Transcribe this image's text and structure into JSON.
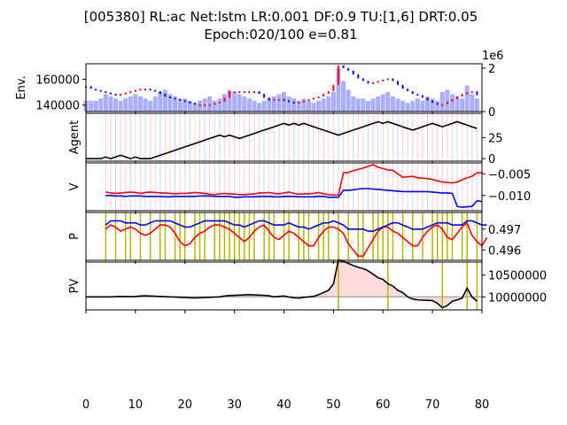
{
  "chart_data": {
    "title_line1": "[005380] RL:ac Net:lstm LR:0.001 DF:0.9 TU:[1,6] DRT:0.05",
    "title_line2": "Epoch:020/100 e=0.81",
    "x_ticks": [
      "0",
      "10",
      "20",
      "30",
      "40",
      "50",
      "60",
      "70",
      "80"
    ],
    "xlim": [
      0,
      80
    ],
    "panels": [
      {
        "type": "candlestick+bar",
        "ylabel": "Env.",
        "ylim": [
          135000,
          172000
        ],
        "y_ticks": [
          "140000",
          "160000"
        ],
        "y_tick_values": [
          140000,
          160000
        ],
        "right_axis": {
          "ylim": [
            0,
            2200000
          ],
          "ticks": [
            "0",
            "2"
          ],
          "tick_values": [
            0,
            2000000
          ],
          "offset_label": "1e6"
        },
        "close": [
          154000,
          152000,
          151000,
          150000,
          149000,
          148000,
          147000,
          148000,
          149000,
          150000,
          151000,
          152000,
          152000,
          151000,
          150000,
          148000,
          146000,
          145000,
          144000,
          143000,
          142000,
          141000,
          140000,
          140000,
          140000,
          140000,
          141000,
          142000,
          145000,
          150000,
          150000,
          150000,
          150000,
          150000,
          150000,
          148000,
          145000,
          143000,
          144000,
          144000,
          143000,
          142000,
          141000,
          142000,
          143000,
          144000,
          145000,
          146000,
          148000,
          150000,
          155000,
          170000,
          168000,
          166000,
          163000,
          160000,
          158000,
          156000,
          157000,
          158000,
          159000,
          160000,
          158000,
          155000,
          152000,
          150000,
          148000,
          147000,
          145000,
          143000,
          141000,
          140000,
          140000,
          142000,
          144000,
          146000,
          148000,
          149000,
          150000,
          147000
        ],
        "volume": [
          500000,
          500000,
          500000,
          600000,
          800000,
          700000,
          600000,
          500000,
          600000,
          700000,
          800000,
          700000,
          600000,
          500000,
          700000,
          900000,
          1000000,
          800000,
          700000,
          600000,
          600000,
          500000,
          400000,
          500000,
          600000,
          700000,
          500000,
          600000,
          800000,
          1000000,
          900000,
          800000,
          700000,
          600000,
          500000,
          400000,
          500000,
          600000,
          700000,
          800000,
          900000,
          700000,
          600000,
          500000,
          600000,
          500000,
          400000,
          500000,
          600000,
          700000,
          900000,
          2000000,
          1400000,
          1000000,
          700000,
          600000,
          600000,
          500000,
          600000,
          700000,
          800000,
          900000,
          700000,
          600000,
          500000,
          400000,
          500000,
          600000,
          500000,
          700000,
          600000,
          500000,
          900000,
          1000000,
          800000,
          700000,
          600000,
          1200000,
          800000,
          600000
        ]
      },
      {
        "type": "line",
        "ylabel": "Agent",
        "ylim": [
          -3,
          54
        ],
        "y_ticks": [
          "0",
          "25"
        ],
        "y_tick_values": [
          0,
          25
        ],
        "values": [
          0,
          0,
          0,
          0,
          2,
          0,
          2,
          4,
          2,
          0,
          2,
          0,
          0,
          0,
          2,
          4,
          6,
          8,
          10,
          12,
          14,
          16,
          18,
          20,
          22,
          24,
          26,
          28,
          26,
          28,
          26,
          24,
          26,
          28,
          30,
          32,
          34,
          36,
          38,
          40,
          42,
          40,
          42,
          40,
          42,
          40,
          38,
          36,
          34,
          32,
          30,
          28,
          30,
          32,
          34,
          36,
          38,
          40,
          42,
          44,
          42,
          44,
          42,
          40,
          38,
          36,
          34,
          36,
          38,
          40,
          42,
          40,
          38,
          40,
          42,
          44,
          42,
          40,
          38,
          36
        ]
      },
      {
        "type": "line",
        "ylabel": "V",
        "ylim": [
          -0.0135,
          -0.0025
        ],
        "y_ticks": [
          "−0.005",
          "−0.010"
        ],
        "y_tick_values": [
          -0.005,
          -0.01
        ],
        "series": [
          {
            "color": "#ff0000",
            "values": [
              -0.0092,
              -0.0094,
              -0.0095,
              -0.0094,
              -0.0093,
              -0.0092,
              -0.0093,
              -0.0095,
              -0.0093,
              -0.0092,
              -0.0093,
              -0.0094,
              -0.0094,
              -0.0095,
              -0.0096,
              -0.0095,
              -0.0095,
              -0.0094,
              -0.0093,
              -0.0094,
              -0.0095,
              -0.0097,
              -0.0098,
              -0.0096,
              -0.0095,
              -0.0096,
              -0.0097,
              -0.0098,
              -0.0098,
              -0.0097,
              -0.0096,
              -0.0094,
              -0.0094,
              -0.0093,
              -0.0095,
              -0.0096,
              -0.0094,
              -0.0092,
              -0.0095,
              -0.0097,
              -0.0096,
              -0.0096,
              -0.0095,
              -0.0093,
              -0.0096,
              -0.0098,
              -0.0099,
              -0.0099,
              -0.0048,
              -0.0047,
              -0.0043,
              -0.004,
              -0.0037,
              -0.0033,
              -0.0029,
              -0.0035,
              -0.0038,
              -0.0041,
              -0.0042,
              -0.005,
              -0.0058,
              -0.0057,
              -0.0056,
              -0.0059,
              -0.006,
              -0.0061,
              -0.0063,
              -0.0066,
              -0.0069,
              -0.007,
              -0.0071,
              -0.0069,
              -0.0064,
              -0.0059,
              -0.0056,
              -0.0048,
              -0.0047
            ]
          },
          {
            "color": "#0000ff",
            "values": [
              -0.01,
              -0.01,
              -0.0101,
              -0.0101,
              -0.0102,
              -0.0101,
              -0.0101,
              -0.0101,
              -0.0102,
              -0.0102,
              -0.0102,
              -0.0102,
              -0.0103,
              -0.0103,
              -0.0102,
              -0.0102,
              -0.0102,
              -0.0102,
              -0.0102,
              -0.0101,
              -0.0101,
              -0.0101,
              -0.0102,
              -0.0102,
              -0.0102,
              -0.0102,
              -0.0104,
              -0.0104,
              -0.0103,
              -0.0103,
              -0.0103,
              -0.0102,
              -0.0102,
              -0.0102,
              -0.0103,
              -0.0103,
              -0.0102,
              -0.0102,
              -0.0102,
              -0.0103,
              -0.0103,
              -0.0103,
              -0.0103,
              -0.0102,
              -0.0102,
              -0.0104,
              -0.0104,
              -0.0104,
              -0.0088,
              -0.0088,
              -0.0087,
              -0.0085,
              -0.0084,
              -0.0084,
              -0.0085,
              -0.0086,
              -0.0087,
              -0.0088,
              -0.0089,
              -0.009,
              -0.0091,
              -0.0091,
              -0.0091,
              -0.0091,
              -0.0091,
              -0.0091,
              -0.0092,
              -0.0093,
              -0.0094,
              -0.0094,
              -0.0095,
              -0.0125,
              -0.0127,
              -0.0126,
              -0.0125,
              -0.0112,
              -0.0114
            ]
          }
        ],
        "x_start": 4
      },
      {
        "type": "line",
        "ylabel": "P",
        "ylim": [
          0.4955,
          0.4978
        ],
        "y_ticks": [
          "0.497",
          "0.496"
        ],
        "y_tick_values": [
          0.497,
          0.496
        ],
        "series": [
          {
            "color": "#ff0000",
            "values": [
              0.497,
              0.4972,
              0.4971,
              0.4969,
              0.497,
              0.4971,
              0.497,
              0.4968,
              0.4967,
              0.4968,
              0.497,
              0.4972,
              0.4972,
              0.4971,
              0.4968,
              0.4964,
              0.4962,
              0.4963,
              0.4966,
              0.4968,
              0.4969,
              0.4971,
              0.4972,
              0.4972,
              0.4971,
              0.497,
              0.4968,
              0.4966,
              0.4964,
              0.4966,
              0.4969,
              0.4971,
              0.4972,
              0.4969,
              0.4966,
              0.4965,
              0.4967,
              0.4969,
              0.4968,
              0.4966,
              0.4964,
              0.4962,
              0.4962,
              0.4966,
              0.4969,
              0.4971,
              0.4971,
              0.497,
              0.4968,
              0.4963,
              0.496,
              0.4957,
              0.4957,
              0.4961,
              0.4965,
              0.4969,
              0.4971,
              0.4971,
              0.4969,
              0.4968,
              0.4966,
              0.4964,
              0.4962,
              0.4962,
              0.4966,
              0.4969,
              0.4971,
              0.4972,
              0.497,
              0.4966,
              0.4965,
              0.4968,
              0.4971,
              0.4973,
              0.4967,
              0.4964,
              0.4962,
              0.4966
            ]
          },
          {
            "color": "#0000ff",
            "values": [
              0.4972,
              0.4974,
              0.4974,
              0.4974,
              0.4973,
              0.4973,
              0.4973,
              0.4972,
              0.4972,
              0.4973,
              0.4974,
              0.4974,
              0.4974,
              0.4974,
              0.4973,
              0.4972,
              0.4971,
              0.4971,
              0.4972,
              0.4973,
              0.4974,
              0.4974,
              0.4974,
              0.4974,
              0.4974,
              0.4973,
              0.4972,
              0.4972,
              0.4971,
              0.4972,
              0.4973,
              0.4974,
              0.4974,
              0.4973,
              0.4972,
              0.4972,
              0.4972,
              0.4973,
              0.4972,
              0.4971,
              0.4971,
              0.497,
              0.4971,
              0.4972,
              0.4973,
              0.4973,
              0.4974,
              0.4973,
              0.4972,
              0.497,
              0.497,
              0.497,
              0.497,
              0.4969,
              0.4969,
              0.497,
              0.4971,
              0.4972,
              0.4973,
              0.4973,
              0.4972,
              0.4971,
              0.497,
              0.497,
              0.497,
              0.4971,
              0.4972,
              0.4973,
              0.4973,
              0.4973,
              0.4972,
              0.4972,
              0.4972,
              0.4974,
              0.4974,
              0.4973,
              0.4972,
              0.4972
            ]
          }
        ],
        "x_start": 4,
        "vlines_x": [
          4,
          6,
          8,
          9,
          11,
          13,
          15,
          16,
          18,
          19,
          20,
          22,
          23,
          24,
          26,
          27,
          28,
          29,
          30,
          31,
          32,
          33,
          34,
          36,
          37,
          38,
          40,
          41,
          43,
          44,
          45,
          47,
          48,
          49,
          51,
          53,
          55,
          56,
          58,
          59,
          60,
          61,
          62,
          64,
          66,
          68,
          70,
          71,
          72,
          73,
          74,
          76,
          77,
          79
        ]
      },
      {
        "type": "area-line",
        "ylabel": "PV",
        "ylim": [
          9700000,
          10800000
        ],
        "y_ticks": [
          "10500000",
          "10000000"
        ],
        "y_tick_values": [
          10500000,
          10000000
        ],
        "baseline": 10000000,
        "values": [
          10000000,
          10000000,
          10000000,
          10000000,
          10000000,
          10000000,
          10005000,
          10010000,
          10008000,
          10005000,
          10010000,
          10020000,
          10025000,
          10020000,
          10015000,
          10010000,
          10005000,
          10000000,
          9995000,
          9990000,
          9985000,
          9980000,
          9975000,
          9980000,
          9985000,
          9990000,
          9995000,
          10000000,
          10020000,
          10030000,
          10035000,
          10040000,
          10045000,
          10050000,
          10045000,
          10040000,
          10035000,
          10025000,
          10000000,
          10010000,
          10020000,
          9995000,
          9980000,
          9970000,
          9990000,
          10000000,
          10010000,
          10050000,
          10100000,
          10150000,
          10300000,
          10850000,
          10820000,
          10770000,
          10720000,
          10680000,
          10650000,
          10600000,
          10520000,
          10440000,
          10400000,
          10300000,
          10250000,
          10150000,
          10100000,
          10000000,
          9950000,
          9930000,
          9925000,
          9920000,
          9915000,
          9850000,
          9750000,
          9800000,
          9900000,
          9930000,
          9970000,
          10200000,
          10000000,
          9900000
        ],
        "vlines_x": [
          51,
          61,
          72,
          77,
          79
        ]
      }
    ]
  }
}
